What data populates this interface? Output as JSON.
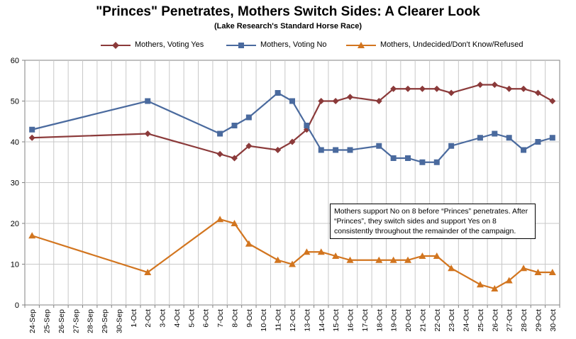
{
  "chart_data": {
    "type": "line",
    "title": "\"Princes\" Penetrates, Mothers Switch Sides: A Clearer Look",
    "subtitle": "(Lake Research's Standard Horse Race)",
    "categories": [
      "24-Sep",
      "25-Sep",
      "26-Sep",
      "27-Sep",
      "28-Sep",
      "29-Sep",
      "30-Sep",
      "1-Oct",
      "2-Oct",
      "3-Oct",
      "4-Oct",
      "5-Oct",
      "6-Oct",
      "7-Oct",
      "8-Oct",
      "9-Oct",
      "10-Oct",
      "11-Oct",
      "12-Oct",
      "13-Oct",
      "14-Oct",
      "15-Oct",
      "16-Oct",
      "17-Oct",
      "18-Oct",
      "19-Oct",
      "20-Oct",
      "21-Oct",
      "22-Oct",
      "23-Oct",
      "24-Oct",
      "25-Oct",
      "26-Oct",
      "27-Oct",
      "28-Oct",
      "29-Oct",
      "30-Oct"
    ],
    "ylim": [
      0,
      60
    ],
    "yticks": [
      0,
      10,
      20,
      30,
      40,
      50,
      60
    ],
    "grid": true,
    "legend_position": "top",
    "series": [
      {
        "name": "Mothers, Voting Yes",
        "color": "#8B3A3A",
        "marker": "diamond",
        "points": [
          [
            "24-Sep",
            41
          ],
          [
            "2-Oct",
            42
          ],
          [
            "7-Oct",
            37
          ],
          [
            "8-Oct",
            36
          ],
          [
            "9-Oct",
            39
          ],
          [
            "11-Oct",
            38
          ],
          [
            "12-Oct",
            40
          ],
          [
            "13-Oct",
            43
          ],
          [
            "14-Oct",
            50
          ],
          [
            "15-Oct",
            50
          ],
          [
            "16-Oct",
            51
          ],
          [
            "18-Oct",
            50
          ],
          [
            "19-Oct",
            53
          ],
          [
            "20-Oct",
            53
          ],
          [
            "21-Oct",
            53
          ],
          [
            "22-Oct",
            53
          ],
          [
            "23-Oct",
            52
          ],
          [
            "25-Oct",
            54
          ],
          [
            "26-Oct",
            54
          ],
          [
            "27-Oct",
            53
          ],
          [
            "28-Oct",
            53
          ],
          [
            "29-Oct",
            52
          ],
          [
            "30-Oct",
            50
          ]
        ]
      },
      {
        "name": "Mothers, Voting No",
        "color": "#4A6A9E",
        "marker": "square",
        "points": [
          [
            "24-Sep",
            43
          ],
          [
            "2-Oct",
            50
          ],
          [
            "7-Oct",
            42
          ],
          [
            "8-Oct",
            44
          ],
          [
            "9-Oct",
            46
          ],
          [
            "11-Oct",
            52
          ],
          [
            "12-Oct",
            50
          ],
          [
            "13-Oct",
            44
          ],
          [
            "14-Oct",
            38
          ],
          [
            "15-Oct",
            38
          ],
          [
            "16-Oct",
            38
          ],
          [
            "18-Oct",
            39
          ],
          [
            "19-Oct",
            36
          ],
          [
            "20-Oct",
            36
          ],
          [
            "21-Oct",
            35
          ],
          [
            "22-Oct",
            35
          ],
          [
            "23-Oct",
            39
          ],
          [
            "25-Oct",
            41
          ],
          [
            "26-Oct",
            42
          ],
          [
            "27-Oct",
            41
          ],
          [
            "28-Oct",
            38
          ],
          [
            "29-Oct",
            40
          ],
          [
            "30-Oct",
            41
          ]
        ]
      },
      {
        "name": "Mothers, Undecided/Don't Know/Refused",
        "color": "#D2751F",
        "marker": "triangle",
        "points": [
          [
            "24-Sep",
            17
          ],
          [
            "2-Oct",
            8
          ],
          [
            "7-Oct",
            21
          ],
          [
            "8-Oct",
            20
          ],
          [
            "9-Oct",
            15
          ],
          [
            "11-Oct",
            11
          ],
          [
            "12-Oct",
            10
          ],
          [
            "13-Oct",
            13
          ],
          [
            "14-Oct",
            13
          ],
          [
            "15-Oct",
            12
          ],
          [
            "16-Oct",
            11
          ],
          [
            "18-Oct",
            11
          ],
          [
            "19-Oct",
            11
          ],
          [
            "20-Oct",
            11
          ],
          [
            "21-Oct",
            12
          ],
          [
            "22-Oct",
            12
          ],
          [
            "23-Oct",
            9
          ],
          [
            "25-Oct",
            5
          ],
          [
            "26-Oct",
            4
          ],
          [
            "27-Oct",
            6
          ],
          [
            "28-Oct",
            9
          ],
          [
            "29-Oct",
            8
          ],
          [
            "30-Oct",
            8
          ]
        ]
      }
    ],
    "annotation": "Mothers support No on 8 before “Princes” penetrates. After “Princes”, they switch sides and support Yes on 8 consistently throughout the remainder of the campaign."
  }
}
